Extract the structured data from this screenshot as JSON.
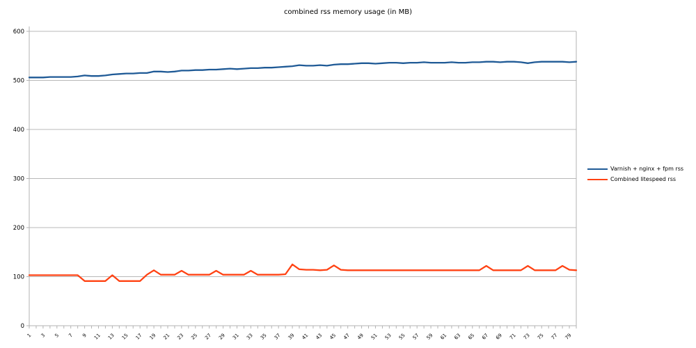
{
  "title": "combined rss memory usage (in MB)",
  "colors": {
    "series1": "#1f5a96",
    "series2": "#ff4213",
    "gridline": "#b8b8b8",
    "axis": "#b3b3b3",
    "label_text": "#000000",
    "background": "#ffffff"
  },
  "chart_data": {
    "type": "line",
    "title": "combined rss memory usage (in MB)",
    "x": [
      1,
      2,
      3,
      4,
      5,
      6,
      7,
      8,
      9,
      10,
      11,
      12,
      13,
      14,
      15,
      16,
      17,
      18,
      19,
      20,
      21,
      22,
      23,
      24,
      25,
      26,
      27,
      28,
      29,
      30,
      31,
      32,
      33,
      34,
      35,
      36,
      37,
      38,
      39,
      40,
      41,
      42,
      43,
      44,
      45,
      46,
      47,
      48,
      49,
      50,
      51,
      52,
      53,
      54,
      55,
      56,
      57,
      58,
      59,
      60,
      61,
      62,
      63,
      64,
      65,
      66,
      67,
      68,
      69,
      70,
      71,
      72,
      73,
      74,
      75,
      76,
      77,
      78,
      79,
      80
    ],
    "x_tick_labels": [
      1,
      3,
      5,
      7,
      9,
      11,
      13,
      15,
      17,
      19,
      21,
      23,
      25,
      27,
      29,
      31,
      33,
      35,
      37,
      39,
      41,
      43,
      45,
      47,
      49,
      51,
      53,
      55,
      57,
      59,
      61,
      63,
      65,
      67,
      69,
      71,
      73,
      75,
      77,
      79
    ],
    "y_ticks": [
      0,
      100,
      200,
      300,
      400,
      500,
      600
    ],
    "ylim": [
      0,
      600
    ],
    "grid": true,
    "legend_position": "right",
    "series": [
      {
        "name": "Varnish + nginx + fpm rss",
        "color": "#1f5a96",
        "values": [
          506,
          506,
          506,
          507,
          507,
          507,
          507,
          508,
          510,
          509,
          509,
          510,
          512,
          513,
          514,
          514,
          515,
          515,
          518,
          518,
          517,
          518,
          520,
          520,
          521,
          521,
          522,
          522,
          523,
          524,
          523,
          524,
          525,
          525,
          526,
          526,
          527,
          528,
          529,
          531,
          530,
          530,
          531,
          530,
          532,
          533,
          533,
          534,
          535,
          535,
          534,
          535,
          536,
          536,
          535,
          536,
          536,
          537,
          536,
          536,
          536,
          537,
          536,
          536,
          537,
          537,
          538,
          538,
          537,
          538,
          538,
          537,
          535,
          537,
          538,
          538,
          538,
          538,
          537,
          538
        ]
      },
      {
        "name": "Combined litespeed rss",
        "color": "#ff4213",
        "values": [
          103,
          103,
          103,
          103,
          103,
          103,
          103,
          103,
          91,
          91,
          91,
          91,
          103,
          91,
          91,
          91,
          91,
          104,
          113,
          104,
          104,
          104,
          112,
          104,
          104,
          104,
          104,
          112,
          104,
          104,
          104,
          104,
          112,
          104,
          104,
          104,
          104,
          105,
          125,
          115,
          114,
          114,
          113,
          114,
          123,
          114,
          113,
          113,
          113,
          113,
          113,
          113,
          113,
          113,
          113,
          113,
          113,
          113,
          113,
          113,
          113,
          113,
          113,
          113,
          113,
          113,
          122,
          113,
          113,
          113,
          113,
          113,
          122,
          113,
          113,
          113,
          113,
          122,
          114,
          113
        ]
      }
    ]
  }
}
